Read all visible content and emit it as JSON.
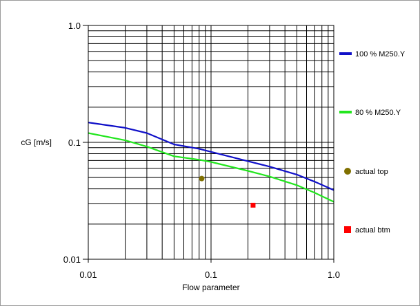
{
  "chart_data": {
    "type": "line",
    "x_scale": "log",
    "y_scale": "log",
    "xlim": [
      0.01,
      1.0
    ],
    "ylim": [
      0.01,
      1.0
    ],
    "xlabel": "Flow parameter",
    "ylabel": "cG [m/s]",
    "x_ticks": [
      {
        "value": 0.01,
        "label": "0.01"
      },
      {
        "value": 0.1,
        "label": "0.1"
      },
      {
        "value": 1.0,
        "label": "1.0"
      }
    ],
    "y_ticks": [
      {
        "value": 1.0,
        "label": "1.0"
      },
      {
        "value": 0.1,
        "label": "0.1"
      },
      {
        "value": 0.01,
        "label": "0.01"
      }
    ],
    "grid": true,
    "legend_position": "right",
    "series": [
      {
        "name": "100 % M250.Y",
        "color": "#1010c8",
        "kind": "line",
        "points": [
          [
            0.01,
            0.148
          ],
          [
            0.02,
            0.133
          ],
          [
            0.03,
            0.12
          ],
          [
            0.05,
            0.096
          ],
          [
            0.08,
            0.088
          ],
          [
            0.1,
            0.083
          ],
          [
            0.2,
            0.069
          ],
          [
            0.3,
            0.062
          ],
          [
            0.5,
            0.053
          ],
          [
            0.7,
            0.046
          ],
          [
            1.0,
            0.039
          ]
        ]
      },
      {
        "name": "80 % M250.Y",
        "color": "#22e61e",
        "kind": "line",
        "points": [
          [
            0.01,
            0.12
          ],
          [
            0.02,
            0.104
          ],
          [
            0.03,
            0.092
          ],
          [
            0.05,
            0.076
          ],
          [
            0.08,
            0.071
          ],
          [
            0.1,
            0.068
          ],
          [
            0.2,
            0.057
          ],
          [
            0.3,
            0.051
          ],
          [
            0.5,
            0.043
          ],
          [
            0.7,
            0.037
          ],
          [
            1.0,
            0.031
          ]
        ]
      },
      {
        "name": "actual top",
        "color": "#807000",
        "kind": "point",
        "marker": "circle",
        "points": [
          [
            0.084,
            0.049
          ]
        ]
      },
      {
        "name": "actual btm",
        "color": "#ff0000",
        "kind": "point",
        "marker": "square",
        "points": [
          [
            0.22,
            0.029
          ]
        ]
      }
    ]
  }
}
